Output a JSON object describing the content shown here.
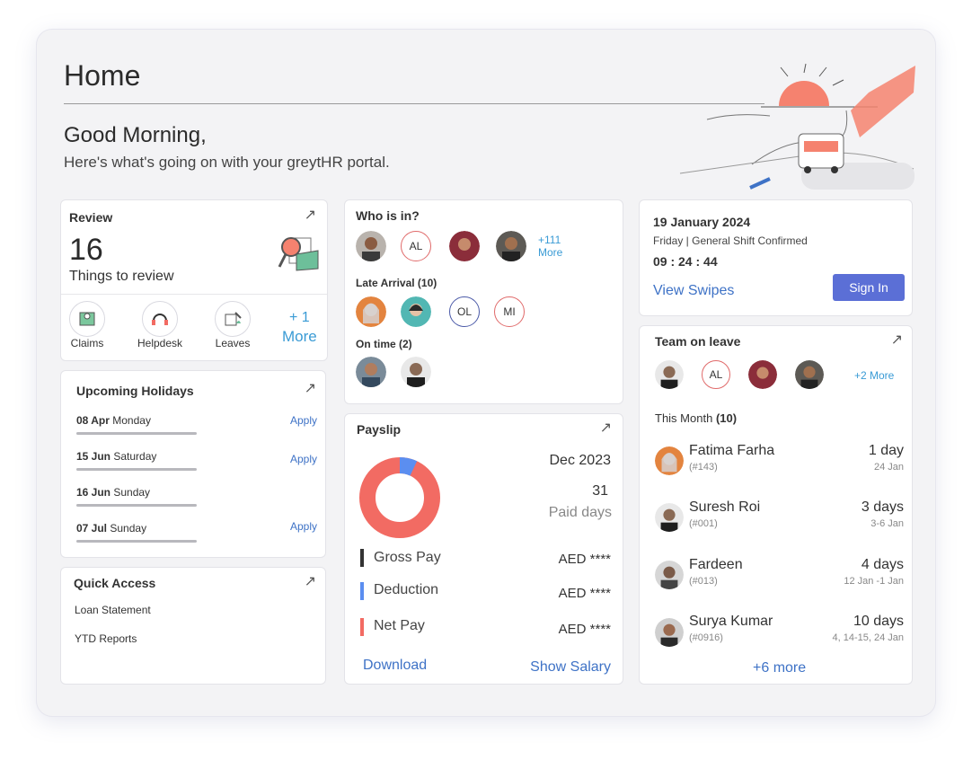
{
  "header": {
    "title": "Home",
    "greeting": "Good Morning,",
    "subtitle": "Here's what's going on with your greytHR portal."
  },
  "review": {
    "title": "Review",
    "count": "16",
    "count_label": "Things to review",
    "actions": [
      {
        "label": "Claims",
        "icon": "claims-icon"
      },
      {
        "label": "Helpdesk",
        "icon": "headset-icon"
      },
      {
        "label": "Leaves",
        "icon": "leaves-icon"
      }
    ],
    "more_count": "+ 1",
    "more_label": "More"
  },
  "holidays": {
    "title": "Upcoming Holidays",
    "items": [
      {
        "date": "08 Apr",
        "day": "Monday",
        "action": "Apply"
      },
      {
        "date": "15 Jun",
        "day": "Saturday",
        "action": "Apply"
      },
      {
        "date": "16 Jun",
        "day": "Sunday",
        "action": ""
      },
      {
        "date": "07 Jul",
        "day": "Sunday",
        "action": "Apply"
      }
    ]
  },
  "quick_access": {
    "title": "Quick Access",
    "items": [
      "Loan Statement",
      "YTD Reports"
    ]
  },
  "who_is_in": {
    "title": "Who is in?",
    "avatars": [
      "",
      "AL",
      "",
      ""
    ],
    "more_count": "+111",
    "more_label": "More",
    "late_title": "Late Arrival (10)",
    "late_avatars": [
      "",
      "",
      "OL",
      "MI"
    ],
    "ontime_title": "On time (2)"
  },
  "payslip": {
    "title": "Payslip",
    "period": "Dec 2023",
    "paid_days_value": "31",
    "paid_days_label": "Paid days",
    "rows": [
      {
        "label": "Gross Pay",
        "value": "AED ****",
        "color": "#333333"
      },
      {
        "label": "Deduction",
        "value": "AED ****",
        "color": "#5b8ef0"
      },
      {
        "label": "Net Pay",
        "value": "AED ****",
        "color": "#f26b63"
      }
    ],
    "donut": {
      "deduction_fraction": 0.07,
      "net_fraction": 0.93
    },
    "download": "Download",
    "show_salary": "Show Salary"
  },
  "attendance": {
    "date": "19 January 2024",
    "shift": "Friday | General Shift Confirmed",
    "time": "09 : 24 : 44",
    "view_swipes": "View Swipes",
    "sign_in": "Sign In"
  },
  "team_leave": {
    "title": "Team on leave",
    "avatars": [
      "",
      "AL",
      "",
      ""
    ],
    "more": "+2 More",
    "month_label": "This Month",
    "month_count": "(10)",
    "people": [
      {
        "name": "Fatima Farha",
        "id": "(#143)",
        "days": "1 day",
        "dates": "24 Jan"
      },
      {
        "name": "Suresh Roi",
        "id": "(#001)",
        "days": "3 days",
        "dates": "3-6 Jan"
      },
      {
        "name": "Fardeen",
        "id": "(#013)",
        "days": "4 days",
        "dates": "12 Jan -1 Jan"
      },
      {
        "name": "Surya Kumar",
        "id": "(#0916)",
        "days": "10 days",
        "dates": "4, 14-15, 24 Jan"
      }
    ],
    "more_link": "+6 more"
  },
  "colors": {
    "accent": "#5b6fd6",
    "link": "#3e72c6",
    "net": "#f26b63",
    "deduction": "#5b8ef0"
  }
}
